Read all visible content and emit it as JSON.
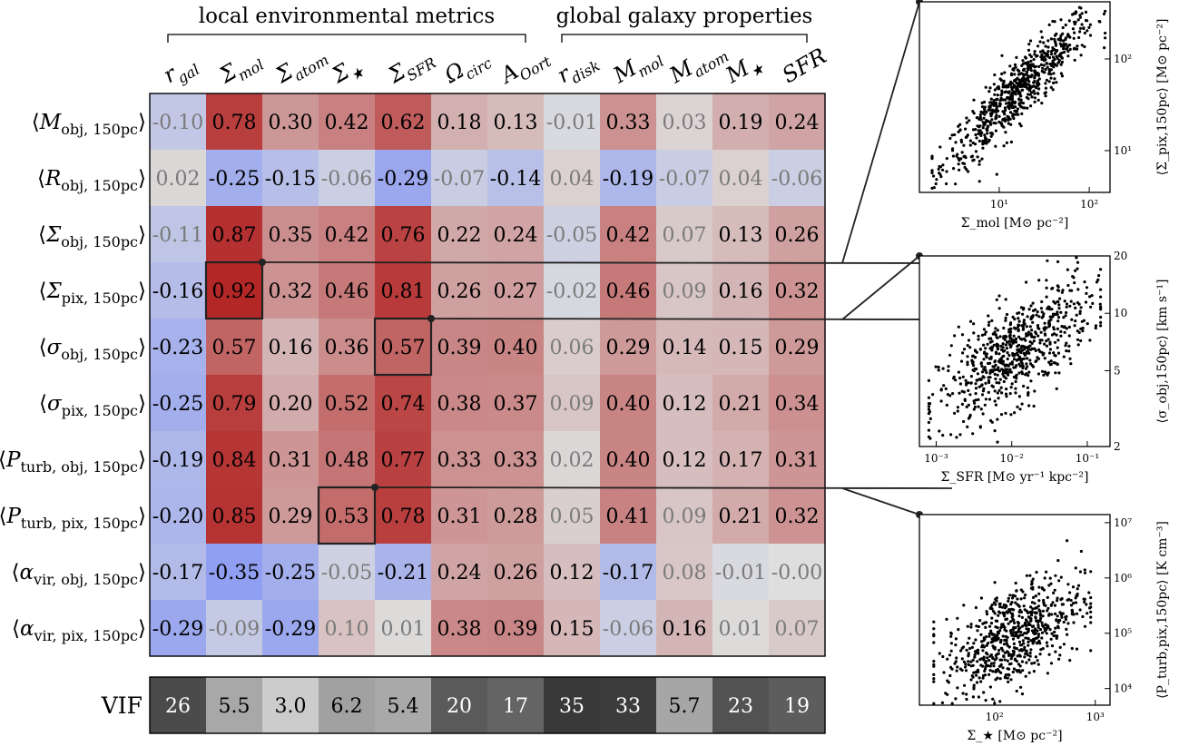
{
  "chart_data": [
    {
      "type": "heatmap",
      "group_labels": [
        {
          "name": "local environmental metrics",
          "columns": [
            0,
            6
          ]
        },
        {
          "name": "global galaxy properties",
          "columns": [
            7,
            11
          ]
        }
      ],
      "columns": [
        "r_gal",
        "Σ_mol",
        "Σ_atom",
        "Σ_★",
        "Σ_SFR",
        "Ω_circ",
        "A_Oort",
        "r_disk",
        "M_mol",
        "M_atom",
        "M_★",
        "SFR"
      ],
      "rows": [
        "⟨M_obj, 150pc⟩",
        "⟨R_obj, 150pc⟩",
        "⟨Σ_obj, 150pc⟩",
        "⟨Σ_pix, 150pc⟩",
        "⟨σ_obj, 150pc⟩",
        "⟨σ_pix, 150pc⟩",
        "⟨P_turb, obj, 150pc⟩",
        "⟨P_turb, pix, 150pc⟩",
        "⟨α_vir, obj, 150pc⟩",
        "⟨α_vir, pix, 150pc⟩"
      ],
      "cells": [
        [
          "-0.10",
          "0.78",
          "0.30",
          "0.42",
          "0.62",
          "0.18",
          "0.13",
          "-0.01",
          "0.33",
          "0.03",
          "0.19",
          "0.24"
        ],
        [
          "0.02",
          "-0.25",
          "-0.15",
          "-0.06",
          "-0.29",
          "-0.07",
          "-0.14",
          "0.04",
          "-0.19",
          "-0.07",
          "0.04",
          "-0.06"
        ],
        [
          "-0.11",
          "0.87",
          "0.35",
          "0.42",
          "0.76",
          "0.22",
          "0.24",
          "-0.05",
          "0.42",
          "0.07",
          "0.13",
          "0.26"
        ],
        [
          "-0.16",
          "0.92",
          "0.32",
          "0.46",
          "0.81",
          "0.26",
          "0.27",
          "-0.02",
          "0.46",
          "0.09",
          "0.16",
          "0.32"
        ],
        [
          "-0.23",
          "0.57",
          "0.16",
          "0.36",
          "0.57",
          "0.39",
          "0.40",
          "0.06",
          "0.29",
          "0.14",
          "0.15",
          "0.29"
        ],
        [
          "-0.25",
          "0.79",
          "0.20",
          "0.52",
          "0.74",
          "0.38",
          "0.37",
          "0.09",
          "0.40",
          "0.12",
          "0.21",
          "0.34"
        ],
        [
          "-0.19",
          "0.84",
          "0.31",
          "0.48",
          "0.77",
          "0.33",
          "0.33",
          "0.02",
          "0.40",
          "0.12",
          "0.17",
          "0.31"
        ],
        [
          "-0.20",
          "0.85",
          "0.29",
          "0.53",
          "0.78",
          "0.31",
          "0.28",
          "0.05",
          "0.41",
          "0.09",
          "0.21",
          "0.32"
        ],
        [
          "-0.17",
          "-0.35",
          "-0.25",
          "-0.05",
          "-0.21",
          "0.24",
          "0.26",
          "0.12",
          "-0.17",
          "0.08",
          "-0.01",
          "-0.00"
        ],
        [
          "-0.29",
          "-0.09",
          "-0.29",
          "0.10",
          "0.01",
          "0.38",
          "0.39",
          "0.15",
          "-0.06",
          "0.16",
          "0.01",
          "0.07"
        ]
      ],
      "highlighted_cells": [
        {
          "row": 3,
          "col": 1
        },
        {
          "row": 4,
          "col": 4
        },
        {
          "row": 7,
          "col": 3
        }
      ],
      "colors": {
        "positive": "#b2182b",
        "negative": "#3b4cc0",
        "neutral": "#dddddd",
        "highlight_border": "#222222"
      }
    },
    {
      "type": "table",
      "label": "VIF",
      "values": [
        "26",
        "5.5",
        "3.0",
        "6.2",
        "5.4",
        "20",
        "17",
        "35",
        "33",
        "5.7",
        "23",
        "19"
      ]
    },
    {
      "type": "scatter",
      "xlabel": "Σ_mol [M⊙ pc⁻²]",
      "ylabel": "⟨Σ_pix,150pc⟩ [M⊙ pc⁻²]",
      "xscale": "log",
      "yscale": "log",
      "xlim": [
        1.3,
        170
      ],
      "ylim": [
        3.5,
        420
      ],
      "xticks": [
        {
          "value": 10,
          "label": "10¹"
        },
        {
          "value": 100,
          "label": "10²"
        }
      ],
      "yticks": [
        {
          "value": 10,
          "label": "10¹"
        },
        {
          "value": 100,
          "label": "10²"
        }
      ],
      "y_axis_side": "right",
      "relation": {
        "log_slope": 0.95,
        "log_intercept": 0.5,
        "scatter_dex": 0.17
      },
      "approx_x_range": [
        1.8,
        150
      ]
    },
    {
      "type": "scatter",
      "xlabel": "Σ_SFR [M⊙ yr⁻¹ kpc⁻²]",
      "ylabel": "⟨σ_obj,150pc⟩ [km s⁻¹]",
      "xscale": "log",
      "yscale": "log",
      "xlim": [
        0.0006,
        0.2
      ],
      "ylim": [
        2,
        20
      ],
      "xticks": [
        {
          "value": 0.001,
          "label": "10⁻³"
        },
        {
          "value": 0.01,
          "label": "10⁻²"
        },
        {
          "value": 0.1,
          "label": "10⁻¹"
        }
      ],
      "yticks": [
        {
          "value": 2,
          "label": "2"
        },
        {
          "value": 5,
          "label": "5"
        },
        {
          "value": 10,
          "label": "10"
        },
        {
          "value": 20,
          "label": "20"
        }
      ],
      "y_axis_side": "right",
      "relation": {
        "log_slope": 0.25,
        "log_intercept": 1.28,
        "scatter_dex": 0.13
      },
      "approx_x_range": [
        0.0008,
        0.15
      ]
    },
    {
      "type": "scatter",
      "xlabel": "Σ_★ [M⊙ pc⁻²]",
      "ylabel": "⟨P_turb,pix,150pc⟩ [K cm⁻³]",
      "xscale": "log",
      "yscale": "log",
      "xlim": [
        18,
        1400
      ],
      "ylim": [
        5000,
        14000000
      ],
      "xticks": [
        {
          "value": 100,
          "label": "10²"
        },
        {
          "value": 1000,
          "label": "10³"
        }
      ],
      "yticks": [
        {
          "value": 10000,
          "label": "10⁴"
        },
        {
          "value": 100000,
          "label": "10⁵"
        },
        {
          "value": 1000000,
          "label": "10⁶"
        },
        {
          "value": 10000000,
          "label": "10⁷"
        }
      ],
      "y_axis_side": "right",
      "relation": {
        "log_slope": 0.9,
        "log_intercept": 3.0,
        "scatter_dex": 0.45
      },
      "approx_x_range": [
        25,
        900
      ]
    }
  ]
}
